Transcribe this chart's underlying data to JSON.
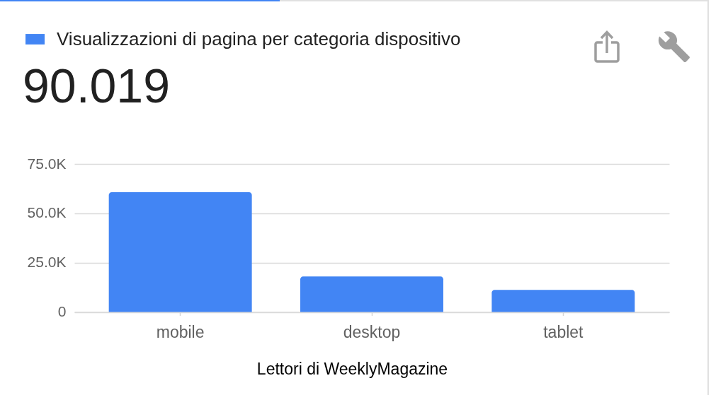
{
  "chart_data": {
    "type": "bar",
    "categories": [
      "mobile",
      "desktop",
      "tablet"
    ],
    "series": [
      {
        "name": "Visualizzazioni di pagina per categoria dispositivo",
        "color": "#4285f4",
        "values": [
          60700,
          18000,
          11200
        ]
      }
    ],
    "xlabel": "Lettori di WeeklyMagazine",
    "ylim": [
      0,
      75000
    ],
    "yticks": [
      0,
      {
        "value": 25000,
        "label": "25.0K"
      },
      {
        "value": 50000,
        "label": "50.0K"
      },
      {
        "value": 75000,
        "label": "75.0K"
      }
    ],
    "grid": "y",
    "legend": "top left",
    "annotations": [
      "90.019"
    ]
  }
}
